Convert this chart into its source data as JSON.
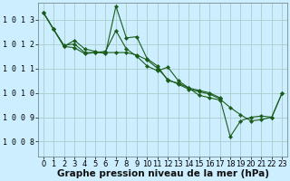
{
  "background_color": "#cceeff",
  "grid_color": "#aacccc",
  "line_color": "#1a5c1a",
  "marker_color": "#1a5c1a",
  "xlabel": "Graphe pression niveau de la mer (hPa)",
  "xlabel_fontsize": 7.5,
  "tick_fontsize": 6.0,
  "xlim": [
    -0.5,
    23.5
  ],
  "ylim": [
    1007.4,
    1013.7
  ],
  "yticks": [
    1008,
    1009,
    1010,
    1011,
    1012,
    1013
  ],
  "xticks": [
    0,
    1,
    2,
    3,
    4,
    5,
    6,
    7,
    8,
    9,
    10,
    11,
    12,
    13,
    14,
    15,
    16,
    17,
    18,
    19,
    20,
    21,
    22,
    23
  ],
  "series": [
    {
      "x": [
        0,
        1,
        2,
        3,
        4,
        5,
        6,
        7,
        8,
        9,
        10,
        11,
        12,
        13,
        14,
        15,
        16,
        17,
        18,
        19,
        20,
        21,
        22,
        23
      ],
      "y": [
        1013.3,
        1012.6,
        1011.9,
        1011.85,
        1011.6,
        1011.65,
        1011.7,
        1012.55,
        1011.8,
        1011.5,
        1011.1,
        1010.9,
        1011.05,
        1010.5,
        1010.2,
        1010.1,
        1010.0,
        1009.8,
        1008.2,
        1008.85,
        1009.0,
        1009.05,
        1009.0,
        1010.0
      ]
    },
    {
      "x": [
        0,
        1,
        2,
        3,
        4,
        5,
        6,
        7,
        8,
        9,
        10,
        11,
        12,
        13,
        14,
        15,
        16,
        17
      ],
      "y": [
        1013.3,
        1012.6,
        1011.9,
        1012.15,
        1011.8,
        1011.7,
        1011.6,
        1013.55,
        1012.25,
        1012.3,
        1011.4,
        1011.1,
        1010.5,
        1010.4,
        1010.2,
        1009.9,
        1009.8,
        1009.7
      ]
    },
    {
      "x": [
        0,
        1,
        2,
        3,
        4,
        5,
        6,
        7,
        8,
        9,
        10,
        11,
        12,
        13,
        14,
        15,
        16,
        17,
        18,
        19,
        20,
        21,
        22,
        23
      ],
      "y": [
        1013.3,
        1012.6,
        1011.95,
        1012.0,
        1011.65,
        1011.65,
        1011.65,
        1011.65,
        1011.65,
        1011.55,
        1011.35,
        1011.0,
        1010.55,
        1010.35,
        1010.15,
        1010.05,
        1009.95,
        1009.75,
        1009.4,
        1009.1,
        1008.85,
        1008.9,
        1009.0,
        1010.0
      ]
    }
  ]
}
